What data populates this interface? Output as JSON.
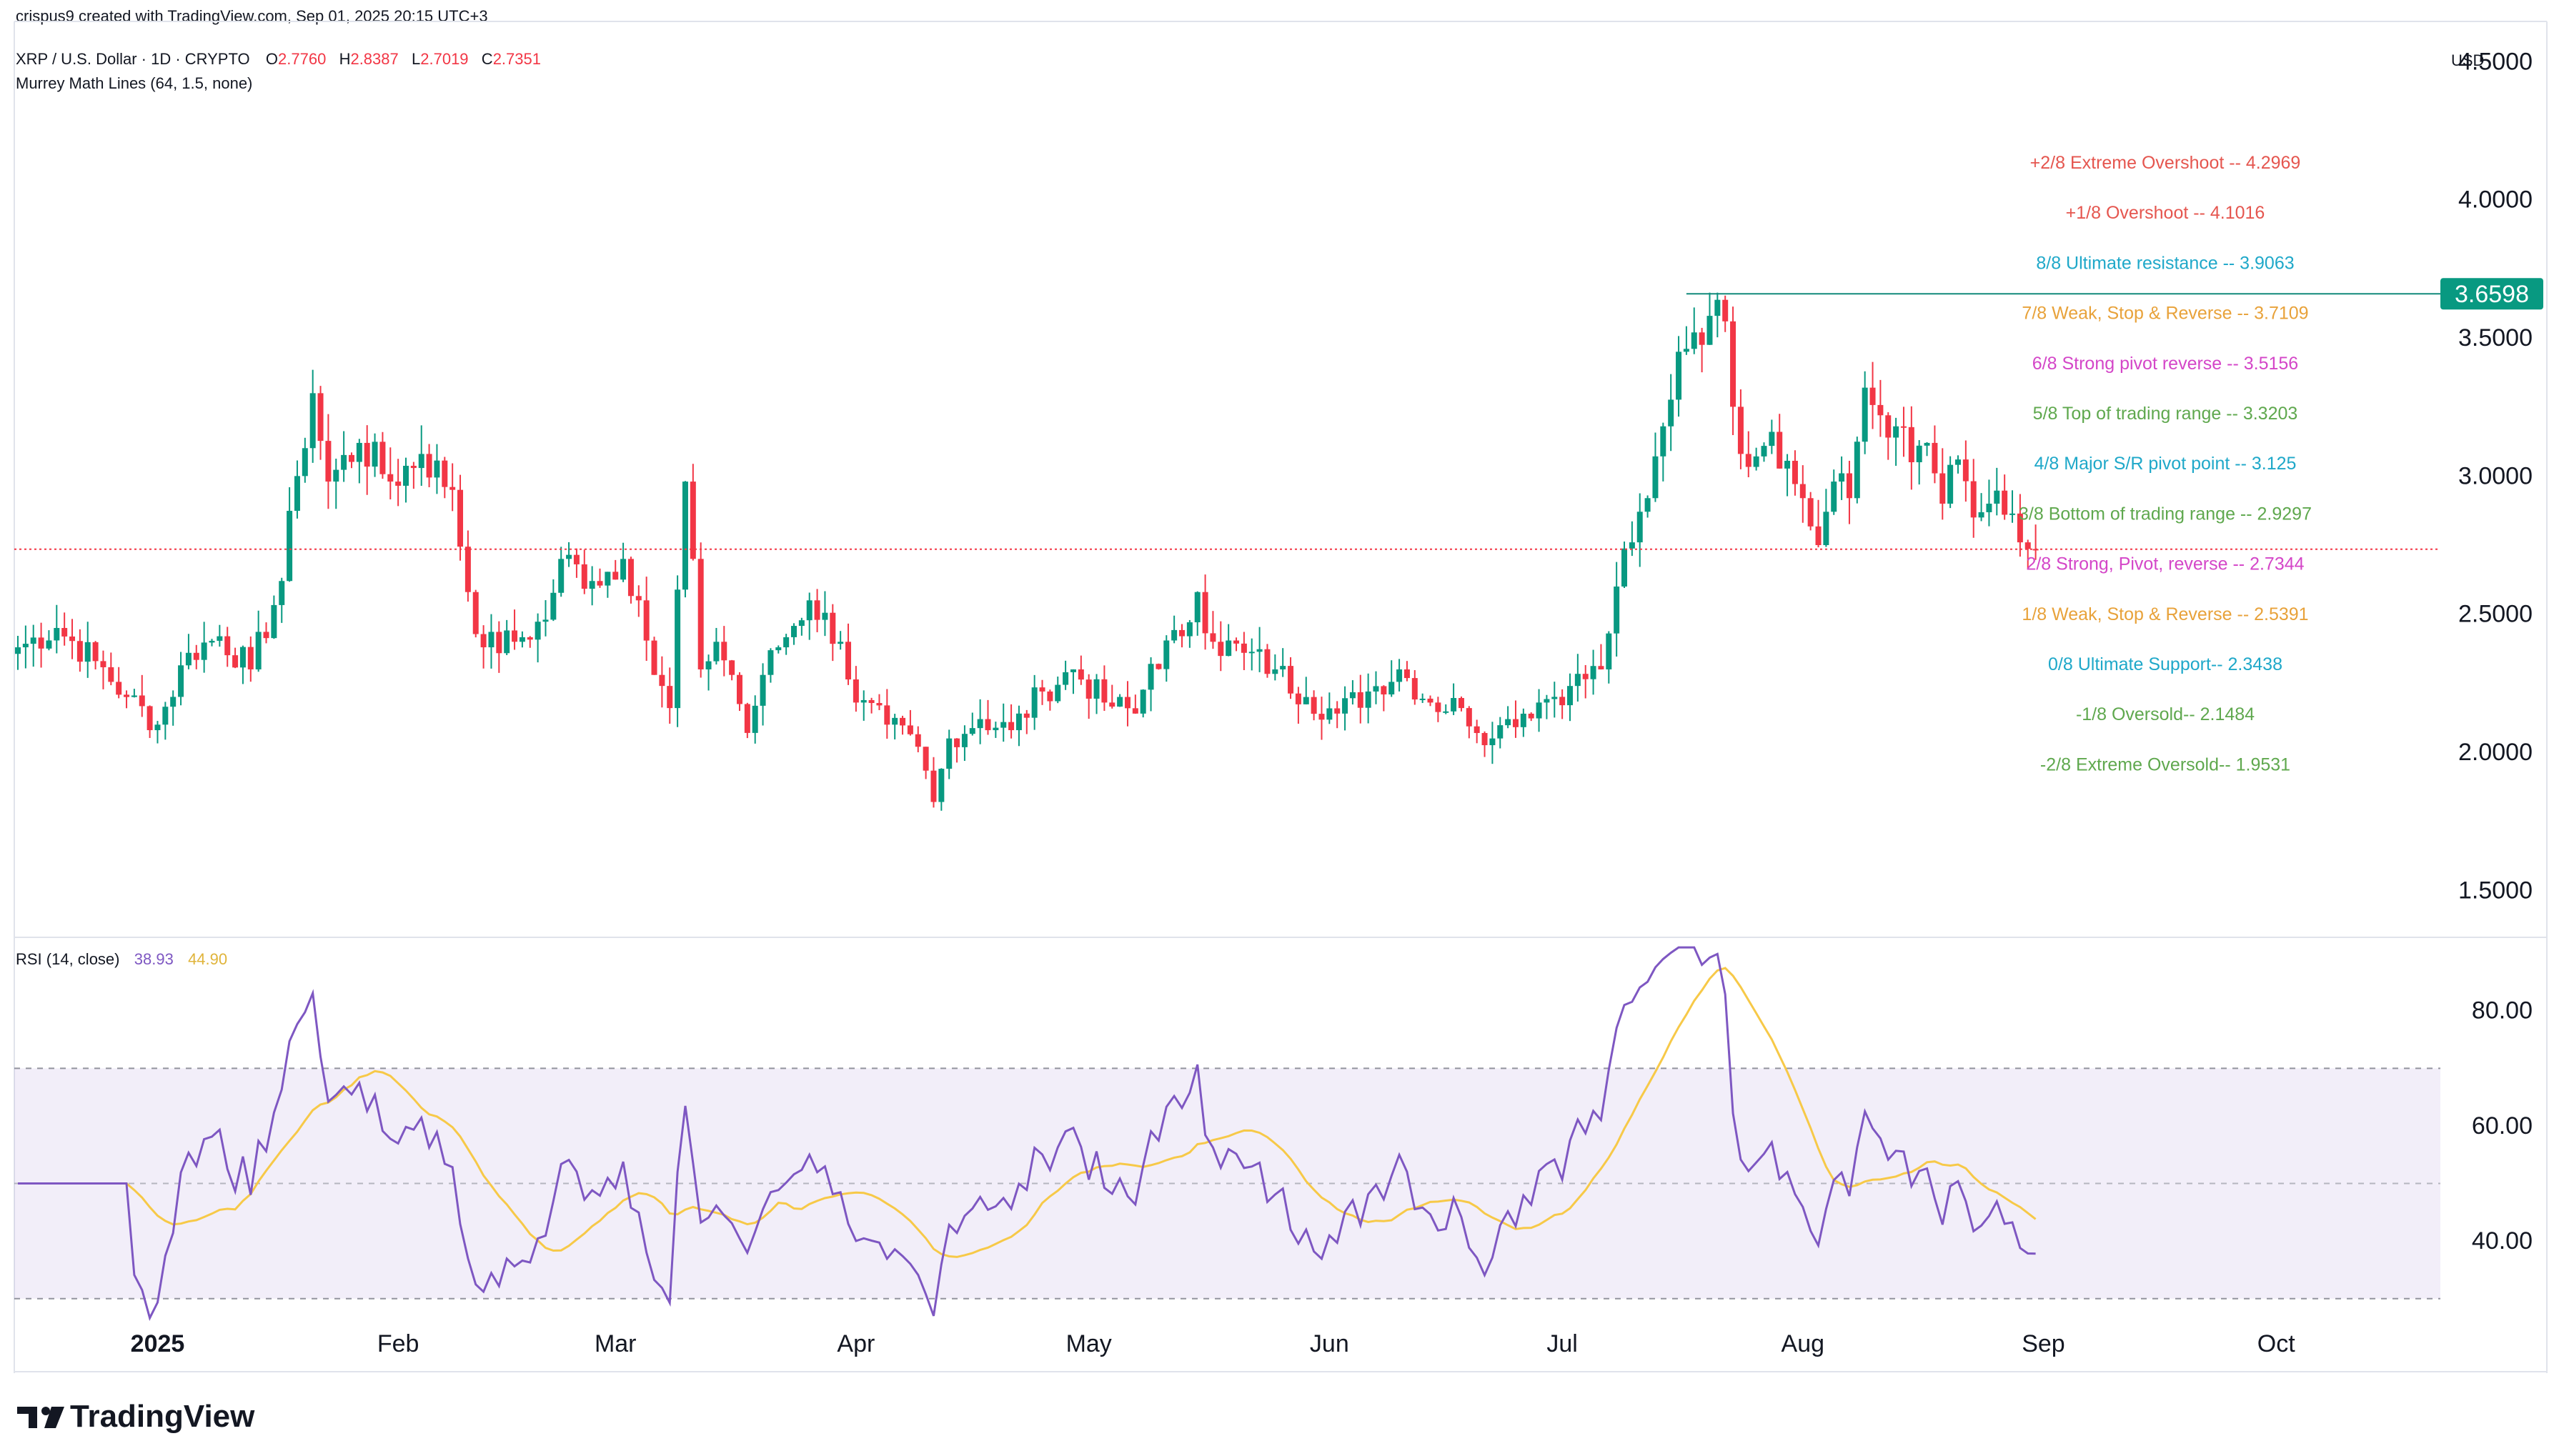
{
  "header": {
    "created_by": "crispus9 created with TradingView.com, Sep 01, 2025 20:15 UTC+3",
    "symbol": "XRP / U.S. Dollar · 1D · CRYPTO",
    "ohlc": {
      "o_label": "O",
      "o": "2.7760",
      "h_label": "H",
      "h": "2.8387",
      "l_label": "L",
      "l": "2.7019",
      "c_label": "C",
      "c": "2.7351"
    },
    "indicator": "Murrey Math Lines (64, 1.5, none)",
    "currency": "USD"
  },
  "rsi_header": {
    "label": "RSI (14, close)",
    "rsi": "38.93",
    "ma": "44.90"
  },
  "footer": {
    "logo_text": "TradingView"
  },
  "chart_data": {
    "type": "candlestick",
    "colors": {
      "up": "#089981",
      "down": "#f23645",
      "rsi": "#7e57c2",
      "rsi_ma": "#f7c948",
      "price_tag": "#089981"
    },
    "price_axis": {
      "ylim": [
        1.33,
        4.62
      ],
      "ticks": [
        "4.5000",
        "4.0000",
        "3.5000",
        "3.0000",
        "2.5000",
        "2.0000",
        "1.5000"
      ]
    },
    "price_tag": "3.6598",
    "current_price_line": 2.7351,
    "time_axis": {
      "labels": [
        "2025",
        "Feb",
        "Mar",
        "Apr",
        "May",
        "Jun",
        "Jul",
        "Aug",
        "Sep",
        "Oct"
      ]
    },
    "murrey_lines": [
      {
        "label": "+2/8 Extreme Overshoot --  4.2969",
        "color": "#e5564f"
      },
      {
        "label": "+1/8 Overshoot --  4.1016",
        "color": "#e5564f"
      },
      {
        "label": "8/8 Ultimate resistance --  3.9063",
        "color": "#1fa8c9"
      },
      {
        "label": "7/8 Weak, Stop & Reverse --  3.7109",
        "color": "#e8a23a"
      },
      {
        "label": "6/8 Strong pivot reverse --  3.5156",
        "color": "#d446c8"
      },
      {
        "label": "5/8 Top of trading range --  3.3203",
        "color": "#5fa84e"
      },
      {
        "label": "4/8 Major S/R pivot point --  3.125",
        "color": "#1fa8c9"
      },
      {
        "label": "3/8 Bottom of trading range --  2.9297",
        "color": "#5fa84e"
      },
      {
        "label": "2/8 Strong, Pivot, reverse --  2.7344",
        "color": "#d446c8"
      },
      {
        "label": "1/8 Weak, Stop & Reverse --  2.5391",
        "color": "#e8a23a"
      },
      {
        "label": "0/8 Ultimate Support--  2.3438",
        "color": "#1fa8c9"
      },
      {
        "label": "-1/8 Oversold--  2.1484",
        "color": "#5fa84e"
      },
      {
        "label": "-2/8 Extreme Oversold--  1.9531",
        "color": "#5fa84e"
      }
    ],
    "close_anchors": [
      [
        0,
        2.38
      ],
      [
        5,
        2.45
      ],
      [
        10,
        2.33
      ],
      [
        14,
        2.2
      ],
      [
        18,
        2.1
      ],
      [
        22,
        2.36
      ],
      [
        26,
        2.42
      ],
      [
        30,
        2.3
      ],
      [
        34,
        2.62
      ],
      [
        36,
        3.0
      ],
      [
        38,
        3.3
      ],
      [
        40,
        2.98
      ],
      [
        44,
        3.12
      ],
      [
        48,
        2.98
      ],
      [
        52,
        3.08
      ],
      [
        56,
        2.95
      ],
      [
        58,
        2.58
      ],
      [
        60,
        2.38
      ],
      [
        64,
        2.4
      ],
      [
        68,
        2.48
      ],
      [
        70,
        2.7
      ],
      [
        74,
        2.62
      ],
      [
        78,
        2.7
      ],
      [
        80,
        2.55
      ],
      [
        82,
        2.28
      ],
      [
        84,
        2.16
      ],
      [
        86,
        2.98
      ],
      [
        88,
        2.3
      ],
      [
        90,
        2.4
      ],
      [
        92,
        2.28
      ],
      [
        94,
        2.07
      ],
      [
        96,
        2.28
      ],
      [
        98,
        2.38
      ],
      [
        102,
        2.55
      ],
      [
        106,
        2.4
      ],
      [
        108,
        2.18
      ],
      [
        112,
        2.1
      ],
      [
        116,
        2.02
      ],
      [
        118,
        1.82
      ],
      [
        120,
        2.05
      ],
      [
        124,
        2.12
      ],
      [
        128,
        2.08
      ],
      [
        132,
        2.22
      ],
      [
        136,
        2.3
      ],
      [
        140,
        2.18
      ],
      [
        144,
        2.14
      ],
      [
        146,
        2.32
      ],
      [
        150,
        2.42
      ],
      [
        152,
        2.58
      ],
      [
        154,
        2.4
      ],
      [
        158,
        2.36
      ],
      [
        162,
        2.3
      ],
      [
        166,
        2.2
      ],
      [
        170,
        2.14
      ],
      [
        174,
        2.22
      ],
      [
        178,
        2.3
      ],
      [
        182,
        2.18
      ],
      [
        186,
        2.16
      ],
      [
        190,
        2.05
      ],
      [
        192,
        2.12
      ],
      [
        196,
        2.18
      ],
      [
        200,
        2.24
      ],
      [
        204,
        2.3
      ],
      [
        206,
        2.6
      ],
      [
        208,
        2.76
      ],
      [
        210,
        2.92
      ],
      [
        212,
        3.18
      ],
      [
        214,
        3.45
      ],
      [
        216,
        3.52
      ],
      [
        218,
        3.58
      ],
      [
        220,
        3.56
      ],
      [
        222,
        3.08
      ],
      [
        226,
        3.16
      ],
      [
        230,
        2.92
      ],
      [
        232,
        2.75
      ],
      [
        234,
        2.98
      ],
      [
        236,
        2.92
      ],
      [
        238,
        3.32
      ],
      [
        240,
        3.22
      ],
      [
        242,
        3.18
      ],
      [
        244,
        3.05
      ],
      [
        246,
        3.12
      ],
      [
        248,
        2.9
      ],
      [
        250,
        3.06
      ],
      [
        252,
        2.85
      ],
      [
        254,
        2.9
      ],
      [
        256,
        2.86
      ],
      [
        258,
        2.76
      ],
      [
        260,
        2.7351
      ]
    ],
    "rsi_range": [
      25,
      92
    ],
    "rsi_ticks": [
      "80.00",
      "60.00",
      "40.00"
    ],
    "rsi_bands": [
      70,
      50,
      30
    ]
  }
}
